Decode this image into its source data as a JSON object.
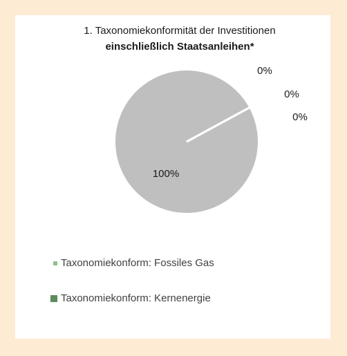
{
  "chart_data": {
    "type": "pie",
    "title": "1. Taxonomiekonformität der Investitionen",
    "subtitle": "einschließlich Staatsanleihen*",
    "categories": [
      "Taxonomiekonform: Fossiles Gas",
      "Taxonomiekonform: Kernenergie",
      null,
      null
    ],
    "values": [
      0,
      0,
      0,
      100
    ],
    "value_labels": [
      "0%",
      "0%",
      "0%",
      "100%"
    ],
    "colors": [
      "#8fbf8f",
      "#5b8c5b",
      "#2e6b2e",
      "#bfbfbf"
    ],
    "legend": "bottom-left"
  }
}
